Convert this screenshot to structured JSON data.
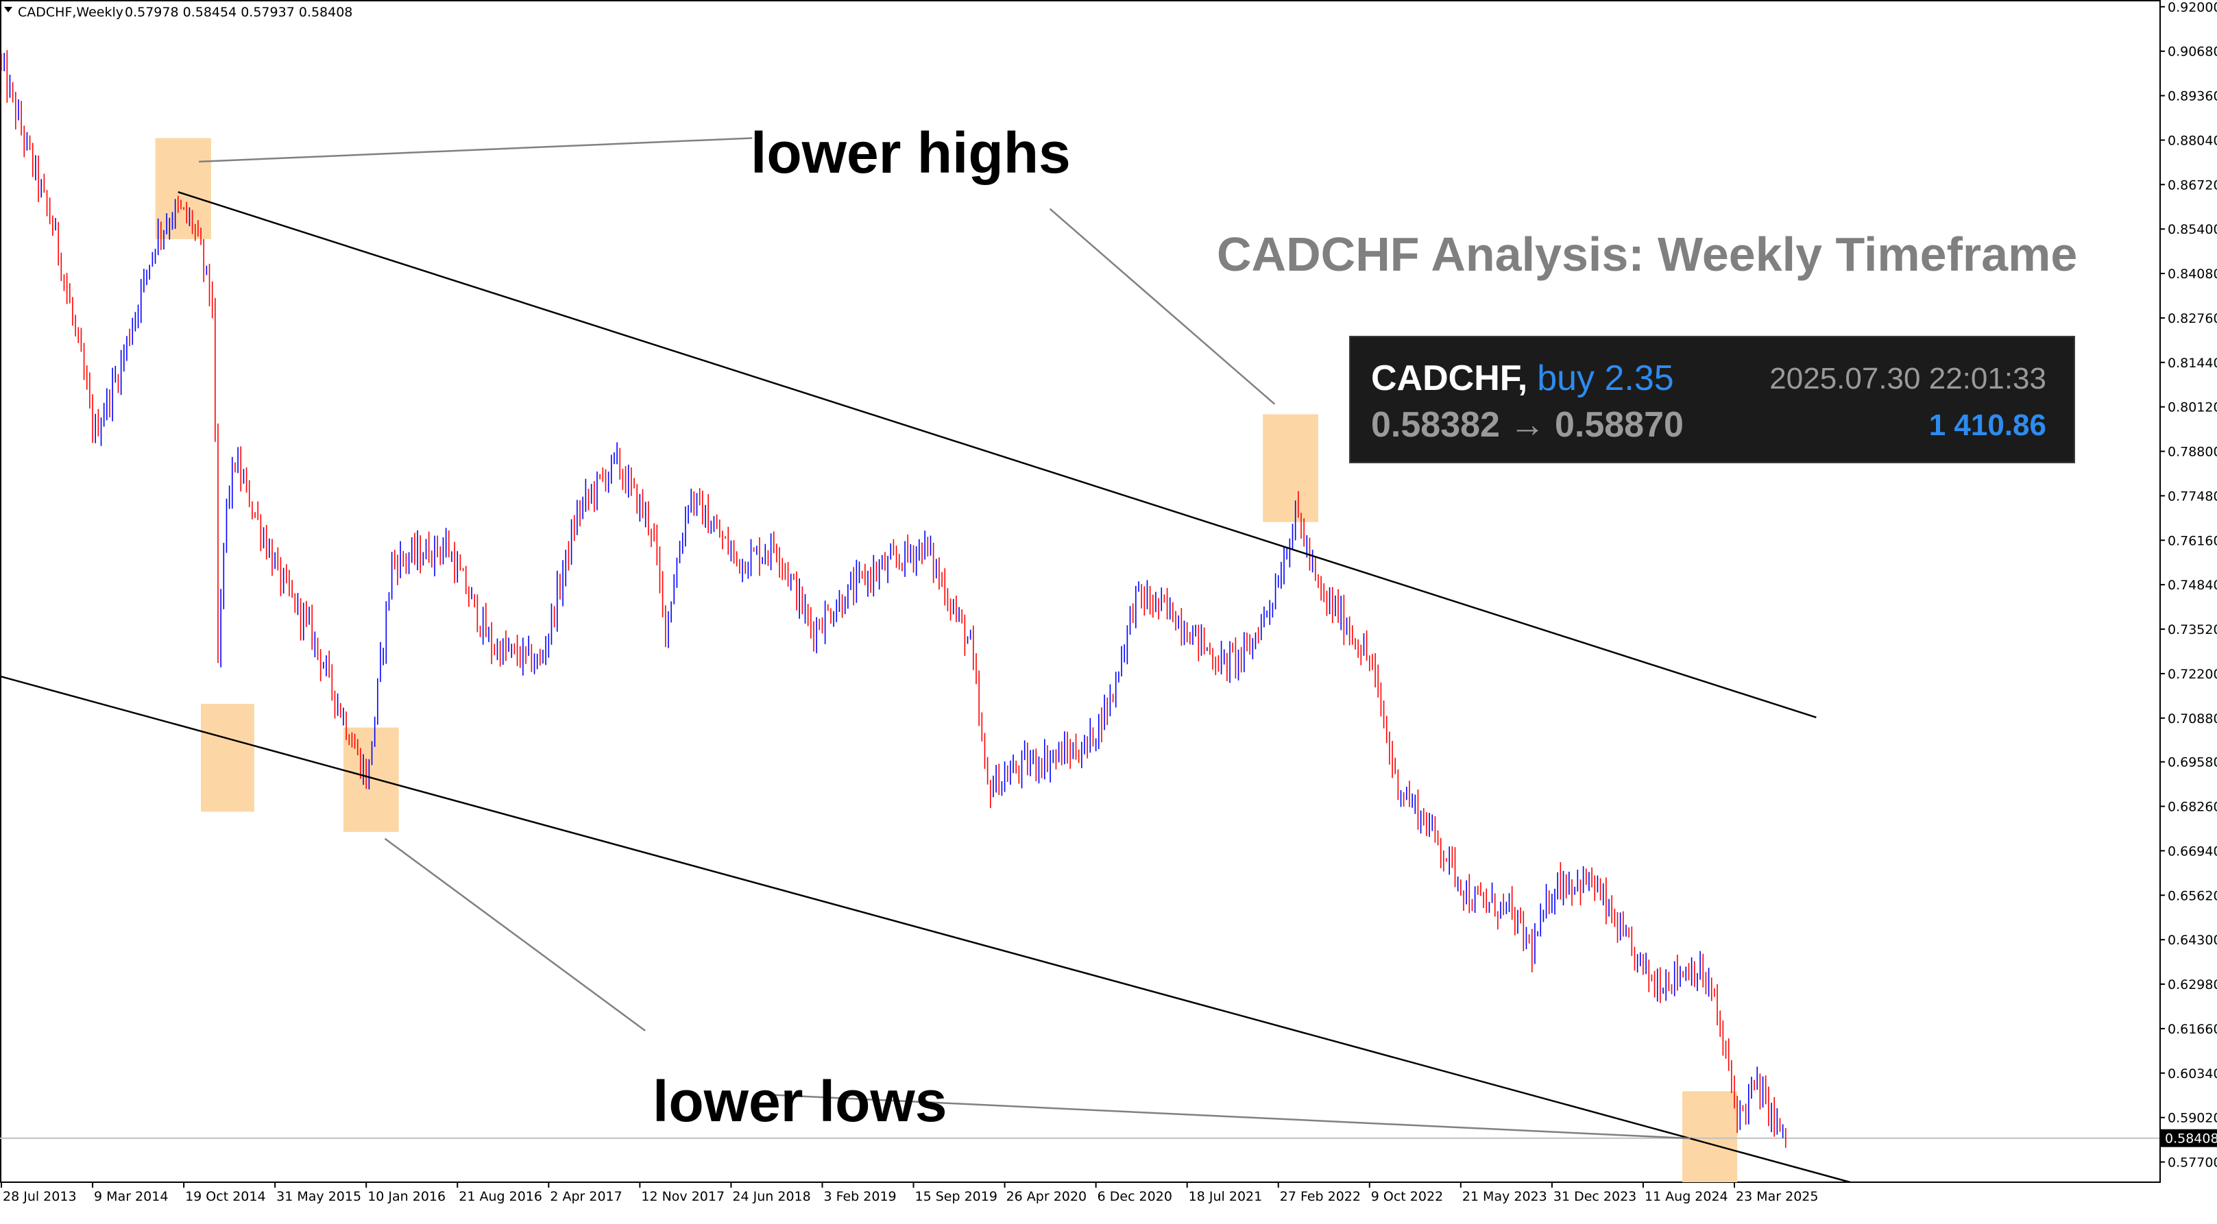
{
  "header": {
    "menu_icon": "triangle-down-icon",
    "symbol_timeframe": "CADCHF,Weekly",
    "ohlc": "0.57978 0.58454 0.57937 0.58408"
  },
  "title": "CADCHF Analysis: Weekly Timeframe",
  "annotations": {
    "lower_highs": "lower highs",
    "lower_lows": "lower lows"
  },
  "trade_card": {
    "symbol": "CADCHF,",
    "side": "buy 2.35",
    "timestamp": "2025.07.30 22:01:33",
    "open_price": "0.58382",
    "arrow": "→",
    "current_price": "0.58870",
    "profit": "1 410.86"
  },
  "colors": {
    "bull": "#0000ff",
    "bear": "#ff0000",
    "highlight_box": "#fcd7a5",
    "channel_line": "#000000",
    "annotation_line": "#808080",
    "title": "#808080",
    "card_bg": "#1b1b1b",
    "card_accent": "#2d8cf0"
  },
  "chart_data": {
    "type": "candlestick",
    "timeframe": "Weekly",
    "symbol": "CADCHF",
    "last_price": "0.58408",
    "ylim": [
      0.571,
      0.922
    ],
    "yticks": [
      "0.92000",
      "0.90680",
      "0.89360",
      "0.88040",
      "0.86720",
      "0.85400",
      "0.84080",
      "0.82760",
      "0.81440",
      "0.80120",
      "0.78800",
      "0.77480",
      "0.76160",
      "0.74840",
      "0.73520",
      "0.72200",
      "0.70880",
      "0.69580",
      "0.68260",
      "0.66940",
      "0.65620",
      "0.64300",
      "0.62980",
      "0.61660",
      "0.60340",
      "0.59020",
      "0.57700"
    ],
    "xticks": [
      "28 Jul 2013",
      "9 Mar 2014",
      "19 Oct 2014",
      "31 May 2015",
      "10 Jan 2016",
      "21 Aug 2016",
      "2 Apr 2017",
      "12 Nov 2017",
      "24 Jun 2018",
      "3 Feb 2019",
      "15 Sep 2019",
      "26 Apr 2020",
      "6 Dec 2020",
      "18 Jul 2021",
      "27 Feb 2022",
      "9 Oct 2022",
      "21 May 2023",
      "31 Dec 2023",
      "11 Aug 2024",
      "23 Mar 2025"
    ],
    "price_path_anchors": [
      {
        "date": "2013-07-28",
        "price": 0.905
      },
      {
        "date": "2013-10-01",
        "price": 0.88
      },
      {
        "date": "2013-12-15",
        "price": 0.852
      },
      {
        "date": "2014-02-15",
        "price": 0.815
      },
      {
        "date": "2014-03-20",
        "price": 0.793
      },
      {
        "date": "2014-05-20",
        "price": 0.812
      },
      {
        "date": "2014-08-20",
        "price": 0.852
      },
      {
        "date": "2014-10-10",
        "price": 0.86
      },
      {
        "date": "2014-11-20",
        "price": 0.855
      },
      {
        "date": "2015-01-08",
        "price": 0.83
      },
      {
        "date": "2015-01-16",
        "price": 0.72
      },
      {
        "date": "2015-02-05",
        "price": 0.77
      },
      {
        "date": "2015-03-01",
        "price": 0.785
      },
      {
        "date": "2015-06-20",
        "price": 0.75
      },
      {
        "date": "2015-09-01",
        "price": 0.735
      },
      {
        "date": "2015-12-20",
        "price": 0.7
      },
      {
        "date": "2016-01-20",
        "price": 0.69
      },
      {
        "date": "2016-03-20",
        "price": 0.755
      },
      {
        "date": "2016-08-01",
        "price": 0.76
      },
      {
        "date": "2016-11-20",
        "price": 0.73
      },
      {
        "date": "2017-03-20",
        "price": 0.725
      },
      {
        "date": "2017-06-20",
        "price": 0.77
      },
      {
        "date": "2017-09-20",
        "price": 0.785
      },
      {
        "date": "2017-12-20",
        "price": 0.765
      },
      {
        "date": "2018-01-20",
        "price": 0.735
      },
      {
        "date": "2018-03-20",
        "price": 0.775
      },
      {
        "date": "2018-07-20",
        "price": 0.755
      },
      {
        "date": "2018-10-20",
        "price": 0.76
      },
      {
        "date": "2019-01-15",
        "price": 0.735
      },
      {
        "date": "2019-05-20",
        "price": 0.75
      },
      {
        "date": "2019-10-20",
        "price": 0.76
      },
      {
        "date": "2020-02-10",
        "price": 0.73
      },
      {
        "date": "2020-03-20",
        "price": 0.688
      },
      {
        "date": "2020-06-20",
        "price": 0.695
      },
      {
        "date": "2020-11-20",
        "price": 0.7
      },
      {
        "date": "2021-01-20",
        "price": 0.715
      },
      {
        "date": "2021-03-20",
        "price": 0.745
      },
      {
        "date": "2021-06-20",
        "price": 0.74
      },
      {
        "date": "2021-10-15",
        "price": 0.725
      },
      {
        "date": "2021-12-20",
        "price": 0.728
      },
      {
        "date": "2022-02-20",
        "price": 0.745
      },
      {
        "date": "2022-04-20",
        "price": 0.77
      },
      {
        "date": "2022-06-15",
        "price": 0.745
      },
      {
        "date": "2022-08-01",
        "price": 0.74
      },
      {
        "date": "2022-10-20",
        "price": 0.725
      },
      {
        "date": "2022-12-20",
        "price": 0.69
      },
      {
        "date": "2023-03-20",
        "price": 0.675
      },
      {
        "date": "2023-06-20",
        "price": 0.655
      },
      {
        "date": "2023-09-20",
        "price": 0.652
      },
      {
        "date": "2023-11-20",
        "price": 0.64
      },
      {
        "date": "2024-01-15",
        "price": 0.66
      },
      {
        "date": "2024-04-15",
        "price": 0.66
      },
      {
        "date": "2024-07-15",
        "price": 0.64
      },
      {
        "date": "2024-09-15",
        "price": 0.63
      },
      {
        "date": "2024-12-20",
        "price": 0.635
      },
      {
        "date": "2025-02-01",
        "price": 0.628
      },
      {
        "date": "2025-03-05",
        "price": 0.61
      },
      {
        "date": "2025-04-10",
        "price": 0.59
      },
      {
        "date": "2025-05-20",
        "price": 0.6
      },
      {
        "date": "2025-07-05",
        "price": 0.59
      },
      {
        "date": "2025-07-27",
        "price": 0.584
      }
    ],
    "trendlines": [
      {
        "name": "upper-channel",
        "points": [
          {
            "date": "2014-10-05",
            "price": 0.865
          },
          {
            "date": "2025-10-10",
            "price": 0.709
          }
        ]
      },
      {
        "name": "lower-channel",
        "points": [
          {
            "date": "2013-07-01",
            "price": 0.722
          },
          {
            "date": "2026-01-01",
            "price": 0.571
          }
        ]
      }
    ],
    "highlight_zones": [
      {
        "from": "2014-08-10",
        "to": "2014-12-25",
        "low": 0.851,
        "high": 0.881
      },
      {
        "from": "2014-11-30",
        "to": "2015-04-10",
        "low": 0.681,
        "high": 0.713
      },
      {
        "from": "2015-11-15",
        "to": "2016-03-30",
        "low": 0.675,
        "high": 0.706
      },
      {
        "from": "2022-01-20",
        "to": "2022-06-05",
        "low": 0.767,
        "high": 0.799
      },
      {
        "from": "2024-11-15",
        "to": "2025-03-30",
        "low": 0.571,
        "high": 0.598
      }
    ],
    "annotation_leaders": [
      {
        "label": "lower highs",
        "from": {
          "date": "2014-11-25",
          "price": 0.874
        },
        "to": {
          "date": "2018-08-15",
          "price": 0.881
        }
      },
      {
        "label": "lower highs",
        "from": {
          "date": "2020-08-15",
          "price": 0.86
        },
        "to": {
          "date": "2022-02-18",
          "price": 0.802
        }
      },
      {
        "label": "lower lows",
        "from": {
          "date": "2016-02-25",
          "price": 0.673
        },
        "to": {
          "date": "2017-11-25",
          "price": 0.616
        }
      },
      {
        "label": "lower lows",
        "from": {
          "date": "2018-09-20",
          "price": 0.597
        },
        "to": {
          "date": "2024-12-05",
          "price": 0.584
        }
      }
    ]
  }
}
